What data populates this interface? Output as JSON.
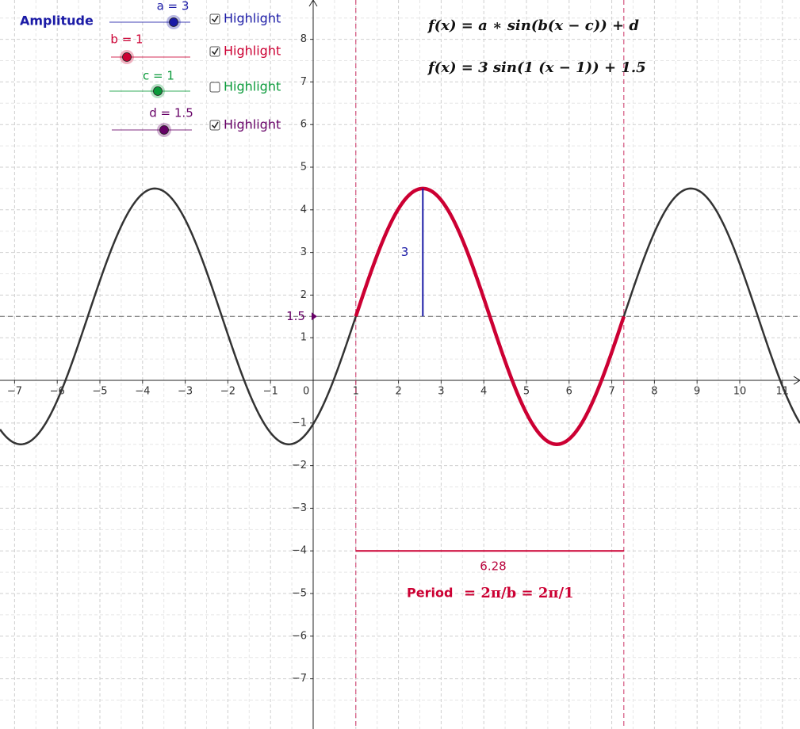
{
  "panel_title": "Amplitude",
  "sliders": [
    {
      "label": "a = 3",
      "value": 3,
      "checkbox": "Highlight",
      "checked": true,
      "color": "#1a1aa6"
    },
    {
      "label": "b = 1",
      "value": 1,
      "checkbox": "Highlight",
      "checked": true,
      "color": "#cc0033"
    },
    {
      "label": "c = 1",
      "value": 1,
      "checkbox": "Highlight",
      "checked": false,
      "color": "#0a9a3a"
    },
    {
      "label": "d = 1.5",
      "value": 1.5,
      "checkbox": "Highlight",
      "checked": true,
      "color": "#660066"
    }
  ],
  "formula_general": "f(x) = a ∗ sin(b(x − c)) + d",
  "formula_specific": "f(x) = 3  sin(1 (x − 1)) + 1.5",
  "axes": {
    "xlim": [
      -7.342,
      11.413
    ],
    "ylim": [
      -8.178,
      8.922
    ],
    "origin_label": "0",
    "xticks": [
      {
        "value": -7,
        "label": "−7"
      },
      {
        "value": -6,
        "label": "−6"
      },
      {
        "value": -5,
        "label": "−5"
      },
      {
        "value": -4,
        "label": "−4"
      },
      {
        "value": -3,
        "label": "−3"
      },
      {
        "value": -2,
        "label": "−2"
      },
      {
        "value": -1,
        "label": "−1"
      },
      1,
      2,
      3,
      4,
      5,
      6,
      7,
      8,
      9,
      10,
      11
    ],
    "yticks": [
      {
        "value": -7,
        "label": "−7"
      },
      {
        "value": -6,
        "label": "−6"
      },
      {
        "value": -5,
        "label": "−5"
      },
      {
        "value": -4,
        "label": "−4"
      },
      {
        "value": -3,
        "label": "−3"
      },
      {
        "value": -2,
        "label": "−2"
      },
      {
        "value": -1,
        "label": "−1"
      },
      1,
      2,
      3,
      4,
      5,
      6,
      7,
      8
    ]
  },
  "amplitude_label": "3",
  "midline_label": "1.5",
  "period": {
    "length_label": "6.28",
    "label": "Period",
    "formula": "= 2π/b = 2π/1"
  }
}
